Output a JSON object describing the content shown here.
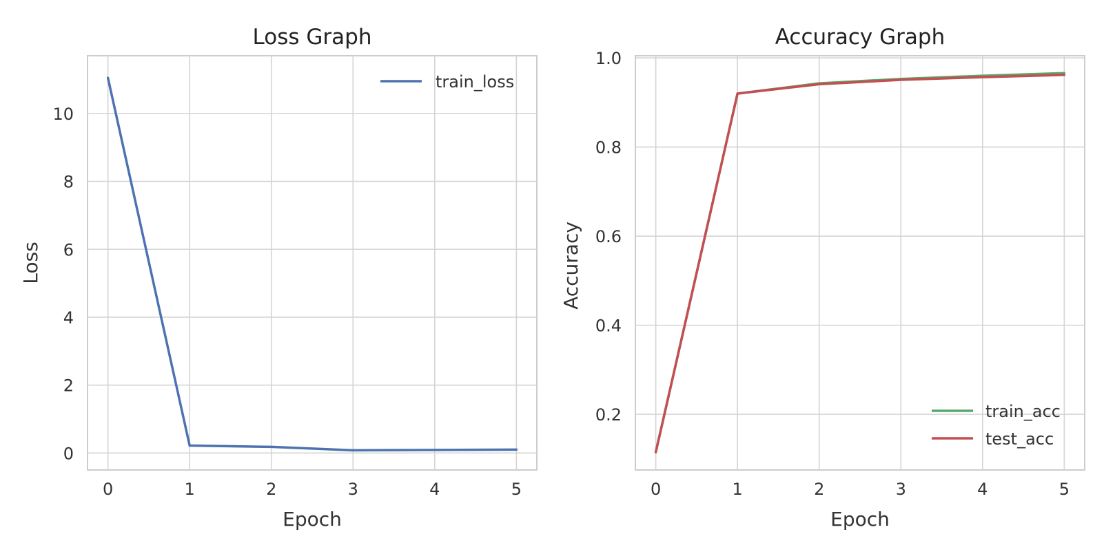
{
  "colors": {
    "train_loss": "#4c72b0",
    "train_acc": "#55a868",
    "test_acc": "#c44e52"
  },
  "chart_data": [
    {
      "type": "line",
      "title": "Loss Graph",
      "xlabel": "Epoch",
      "ylabel": "Loss",
      "x": [
        0,
        1,
        2,
        3,
        4,
        5
      ],
      "xlim": [
        -0.25,
        5.25
      ],
      "ylim": [
        -0.5,
        11.7
      ],
      "xticks": [
        "0",
        "1",
        "2",
        "3",
        "4",
        "5"
      ],
      "yticks": [
        "0",
        "2",
        "4",
        "6",
        "8",
        "10"
      ],
      "grid": true,
      "legend_position": "upper right",
      "series": [
        {
          "name": "train_loss",
          "color": "#4c72b0",
          "values": [
            11.05,
            0.22,
            0.18,
            0.08,
            0.09,
            0.1
          ]
        }
      ]
    },
    {
      "type": "line",
      "title": "Accuracy Graph",
      "xlabel": "Epoch",
      "ylabel": "Accuracy",
      "x": [
        0,
        1,
        2,
        3,
        4,
        5
      ],
      "xlim": [
        -0.25,
        5.25
      ],
      "ylim": [
        0.075,
        1.005
      ],
      "xticks": [
        "0",
        "1",
        "2",
        "3",
        "4",
        "5"
      ],
      "yticks": [
        "0.2",
        "0.4",
        "0.6",
        "0.8",
        "1.0"
      ],
      "grid": true,
      "legend_position": "lower right",
      "series": [
        {
          "name": "train_acc",
          "color": "#55a868",
          "values": [
            0.115,
            0.92,
            0.943,
            0.953,
            0.96,
            0.966
          ]
        },
        {
          "name": "test_acc",
          "color": "#c44e52",
          "values": [
            0.115,
            0.92,
            0.941,
            0.951,
            0.957,
            0.962
          ]
        }
      ]
    }
  ]
}
